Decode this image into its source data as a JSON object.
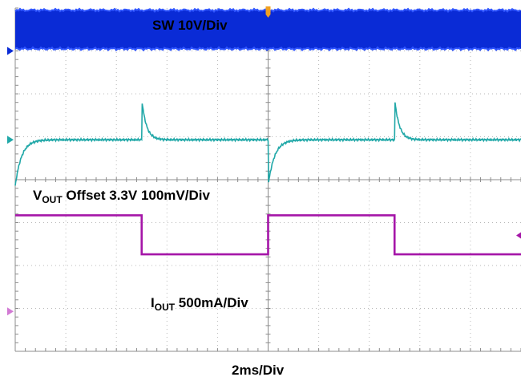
{
  "chart_data": {
    "type": "line",
    "title": "",
    "xlabel": "2ms/Div",
    "grid": true,
    "divisions": {
      "x": 10,
      "y": 8
    },
    "time_per_div_ms": 2,
    "time_range_ms": [
      0,
      20
    ],
    "series": [
      {
        "name": "SW 10V/Div",
        "color": "#0a2bd6",
        "kind": "switching",
        "div_low": 7.95,
        "div_high": 7.05,
        "t_start_ms": 0,
        "t_end_ms": 20
      },
      {
        "name_main": "V",
        "name_sub": "OUT",
        "name_rest": " Offset 3.3V 100mV/Div",
        "color": "#21a8a8",
        "kind": "transient",
        "baseline_div": 4.93,
        "t_ms": [
          0,
          0.4,
          1.0,
          2.0,
          3.0,
          4.0,
          9.95,
          10.0,
          10.4,
          11.0,
          12.0,
          14.0,
          19.95,
          20.0
        ],
        "events": [
          {
            "t_ms": 10.0,
            "type": "undershoot",
            "peak_div": 3.85
          },
          {
            "t_ms": 20.0,
            "type": "overshoot",
            "peak_div": 5.9
          }
        ]
      },
      {
        "name_main": "I",
        "name_sub": "OUT",
        "name_rest": " 500mA/Div",
        "color": "#a516a8",
        "kind": "step",
        "points": [
          {
            "t_ms": 0,
            "div": 3.17
          },
          {
            "t_ms": 10.0,
            "div": 3.17
          },
          {
            "t_ms": 10.0,
            "div": 2.26
          },
          {
            "t_ms": 20.0,
            "div": 2.26
          },
          {
            "t_ms": 20.0,
            "div": 3.17
          },
          {
            "t_ms": 30.0,
            "div": 3.17
          },
          {
            "t_ms": 30.0,
            "div": 2.26
          },
          {
            "t_ms": 40.0,
            "div": 2.26
          }
        ]
      }
    ],
    "visible_time_ms": [
      0,
      20
    ]
  },
  "labels": {
    "sw": "SW 10V/Div",
    "vout_main": "V",
    "vout_sub": "OUT",
    "vout_rest": " Offset 3.3V 100mV/Div",
    "iout_main": "I",
    "iout_sub": "OUT",
    "iout_rest": " 500mA/Div",
    "timebase": "2ms/Div"
  }
}
